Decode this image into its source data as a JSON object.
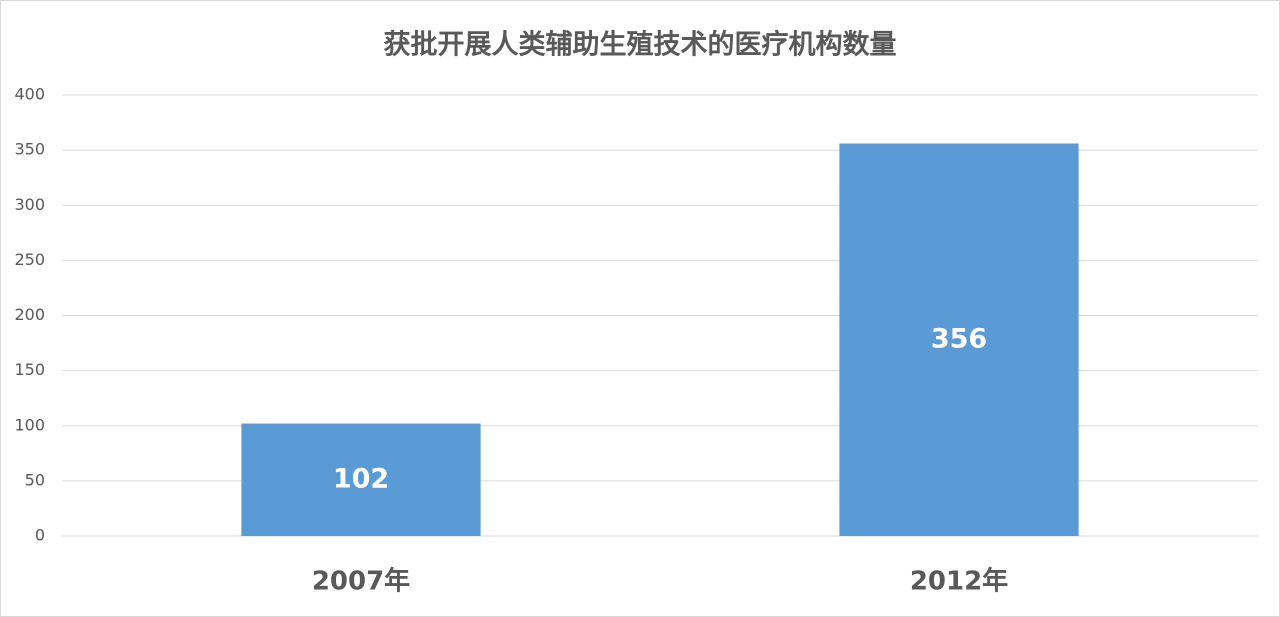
{
  "chart_data": {
    "type": "bar",
    "title": "获批开展人类辅助生殖技术的医疗机构数量",
    "categories": [
      "2007年",
      "2012年"
    ],
    "values": [
      102,
      356
    ],
    "color": "#5b9bd5",
    "ylim": [
      0,
      400
    ],
    "yticks": [
      0,
      50,
      100,
      150,
      200,
      250,
      300,
      350,
      400
    ],
    "grid": true
  }
}
